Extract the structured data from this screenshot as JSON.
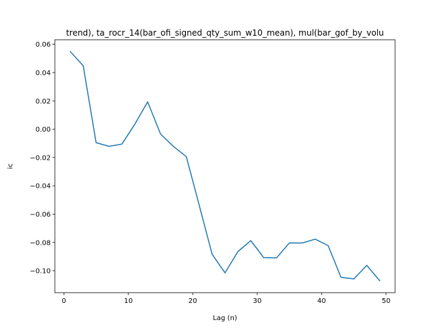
{
  "chart_data": {
    "type": "line",
    "title": "trend), ta_rocr_14(bar_ofi_signed_qty_sum_w10_mean), mul(bar_gof_by_volu",
    "xlabel": "Lag (n)",
    "ylabel": "ic",
    "xlim": [
      -1.4,
      51.4
    ],
    "ylim": [
      -0.1155,
      0.0632
    ],
    "xticks": [
      0,
      10,
      20,
      30,
      40,
      50
    ],
    "xtick_labels": [
      "0",
      "10",
      "20",
      "30",
      "40",
      "50"
    ],
    "yticks": [
      0.06,
      0.04,
      0.02,
      0.0,
      -0.02,
      -0.04,
      -0.06,
      -0.08,
      -0.1
    ],
    "ytick_labels": [
      "0.06",
      "0.04",
      "0.02",
      "0.00",
      "−0.02",
      "−0.04",
      "−0.06",
      "−0.08",
      "−0.10"
    ],
    "grid": false,
    "color": "#1f77b4",
    "series": [
      {
        "x": [
          1,
          3,
          5,
          7,
          9,
          11,
          13,
          15,
          17,
          19,
          21,
          23,
          25,
          27,
          29,
          31,
          33,
          35,
          37,
          39,
          41,
          43,
          45,
          47,
          49
        ],
        "values": [
          0.0548,
          0.0448,
          -0.0095,
          -0.0121,
          -0.0105,
          0.0035,
          0.0193,
          -0.0034,
          -0.0122,
          -0.0194,
          -0.0537,
          -0.0883,
          -0.1015,
          -0.0865,
          -0.0787,
          -0.0907,
          -0.0909,
          -0.0803,
          -0.0804,
          -0.0777,
          -0.0822,
          -0.1046,
          -0.1058,
          -0.0962,
          -0.107
        ]
      }
    ]
  }
}
